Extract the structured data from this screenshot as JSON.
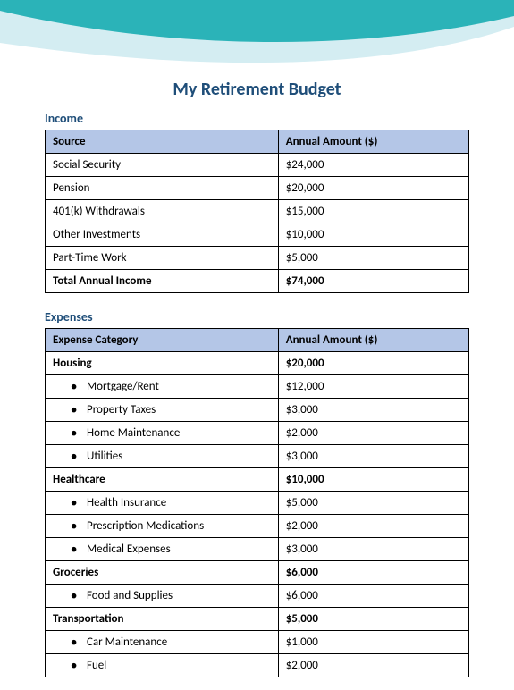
{
  "colors": {
    "title": "#1f4e79",
    "section": "#1f4e79",
    "th_bg": "#b4c6e7",
    "wave_dark": "#2bb3b8",
    "wave_light": "#d4edf2"
  },
  "title": "My Retirement Budget",
  "income": {
    "heading": "Income",
    "columns": [
      "Source",
      "Annual Amount ($)"
    ],
    "rows": [
      {
        "label": "Social Security",
        "amount": "$24,000",
        "bold": false
      },
      {
        "label": "Pension",
        "amount": "$20,000",
        "bold": false
      },
      {
        "label": "401(k) Withdrawals",
        "amount": "$15,000",
        "bold": false
      },
      {
        "label": "Other Investments",
        "amount": "$10,000",
        "bold": false
      },
      {
        "label": "Part-Time Work",
        "amount": "$5,000",
        "bold": false
      },
      {
        "label": "Total Annual Income",
        "amount": "$74,000",
        "bold": true
      }
    ]
  },
  "expenses": {
    "heading": "Expenses",
    "columns": [
      "Expense Category",
      "Annual Amount ($)"
    ],
    "rows": [
      {
        "label": "Housing",
        "amount": "$20,000",
        "bold": true,
        "sub": false
      },
      {
        "label": "Mortgage/Rent",
        "amount": "$12,000",
        "bold": false,
        "sub": true
      },
      {
        "label": "Property Taxes",
        "amount": "$3,000",
        "bold": false,
        "sub": true
      },
      {
        "label": "Home Maintenance",
        "amount": "$2,000",
        "bold": false,
        "sub": true
      },
      {
        "label": "Utilities",
        "amount": "$3,000",
        "bold": false,
        "sub": true
      },
      {
        "label": "Healthcare",
        "amount": "$10,000",
        "bold": true,
        "sub": false
      },
      {
        "label": "Health Insurance",
        "amount": "$5,000",
        "bold": false,
        "sub": true
      },
      {
        "label": "Prescription Medications",
        "amount": "$2,000",
        "bold": false,
        "sub": true
      },
      {
        "label": "Medical Expenses",
        "amount": "$3,000",
        "bold": false,
        "sub": true
      },
      {
        "label": "Groceries",
        "amount": "$6,000",
        "bold": true,
        "sub": false
      },
      {
        "label": "Food and Supplies",
        "amount": "$6,000",
        "bold": false,
        "sub": true
      },
      {
        "label": "Transportation",
        "amount": "$5,000",
        "bold": true,
        "sub": false
      },
      {
        "label": "Car Maintenance",
        "amount": "$1,000",
        "bold": false,
        "sub": true
      },
      {
        "label": "Fuel",
        "amount": "$2,000",
        "bold": false,
        "sub": true
      }
    ]
  }
}
